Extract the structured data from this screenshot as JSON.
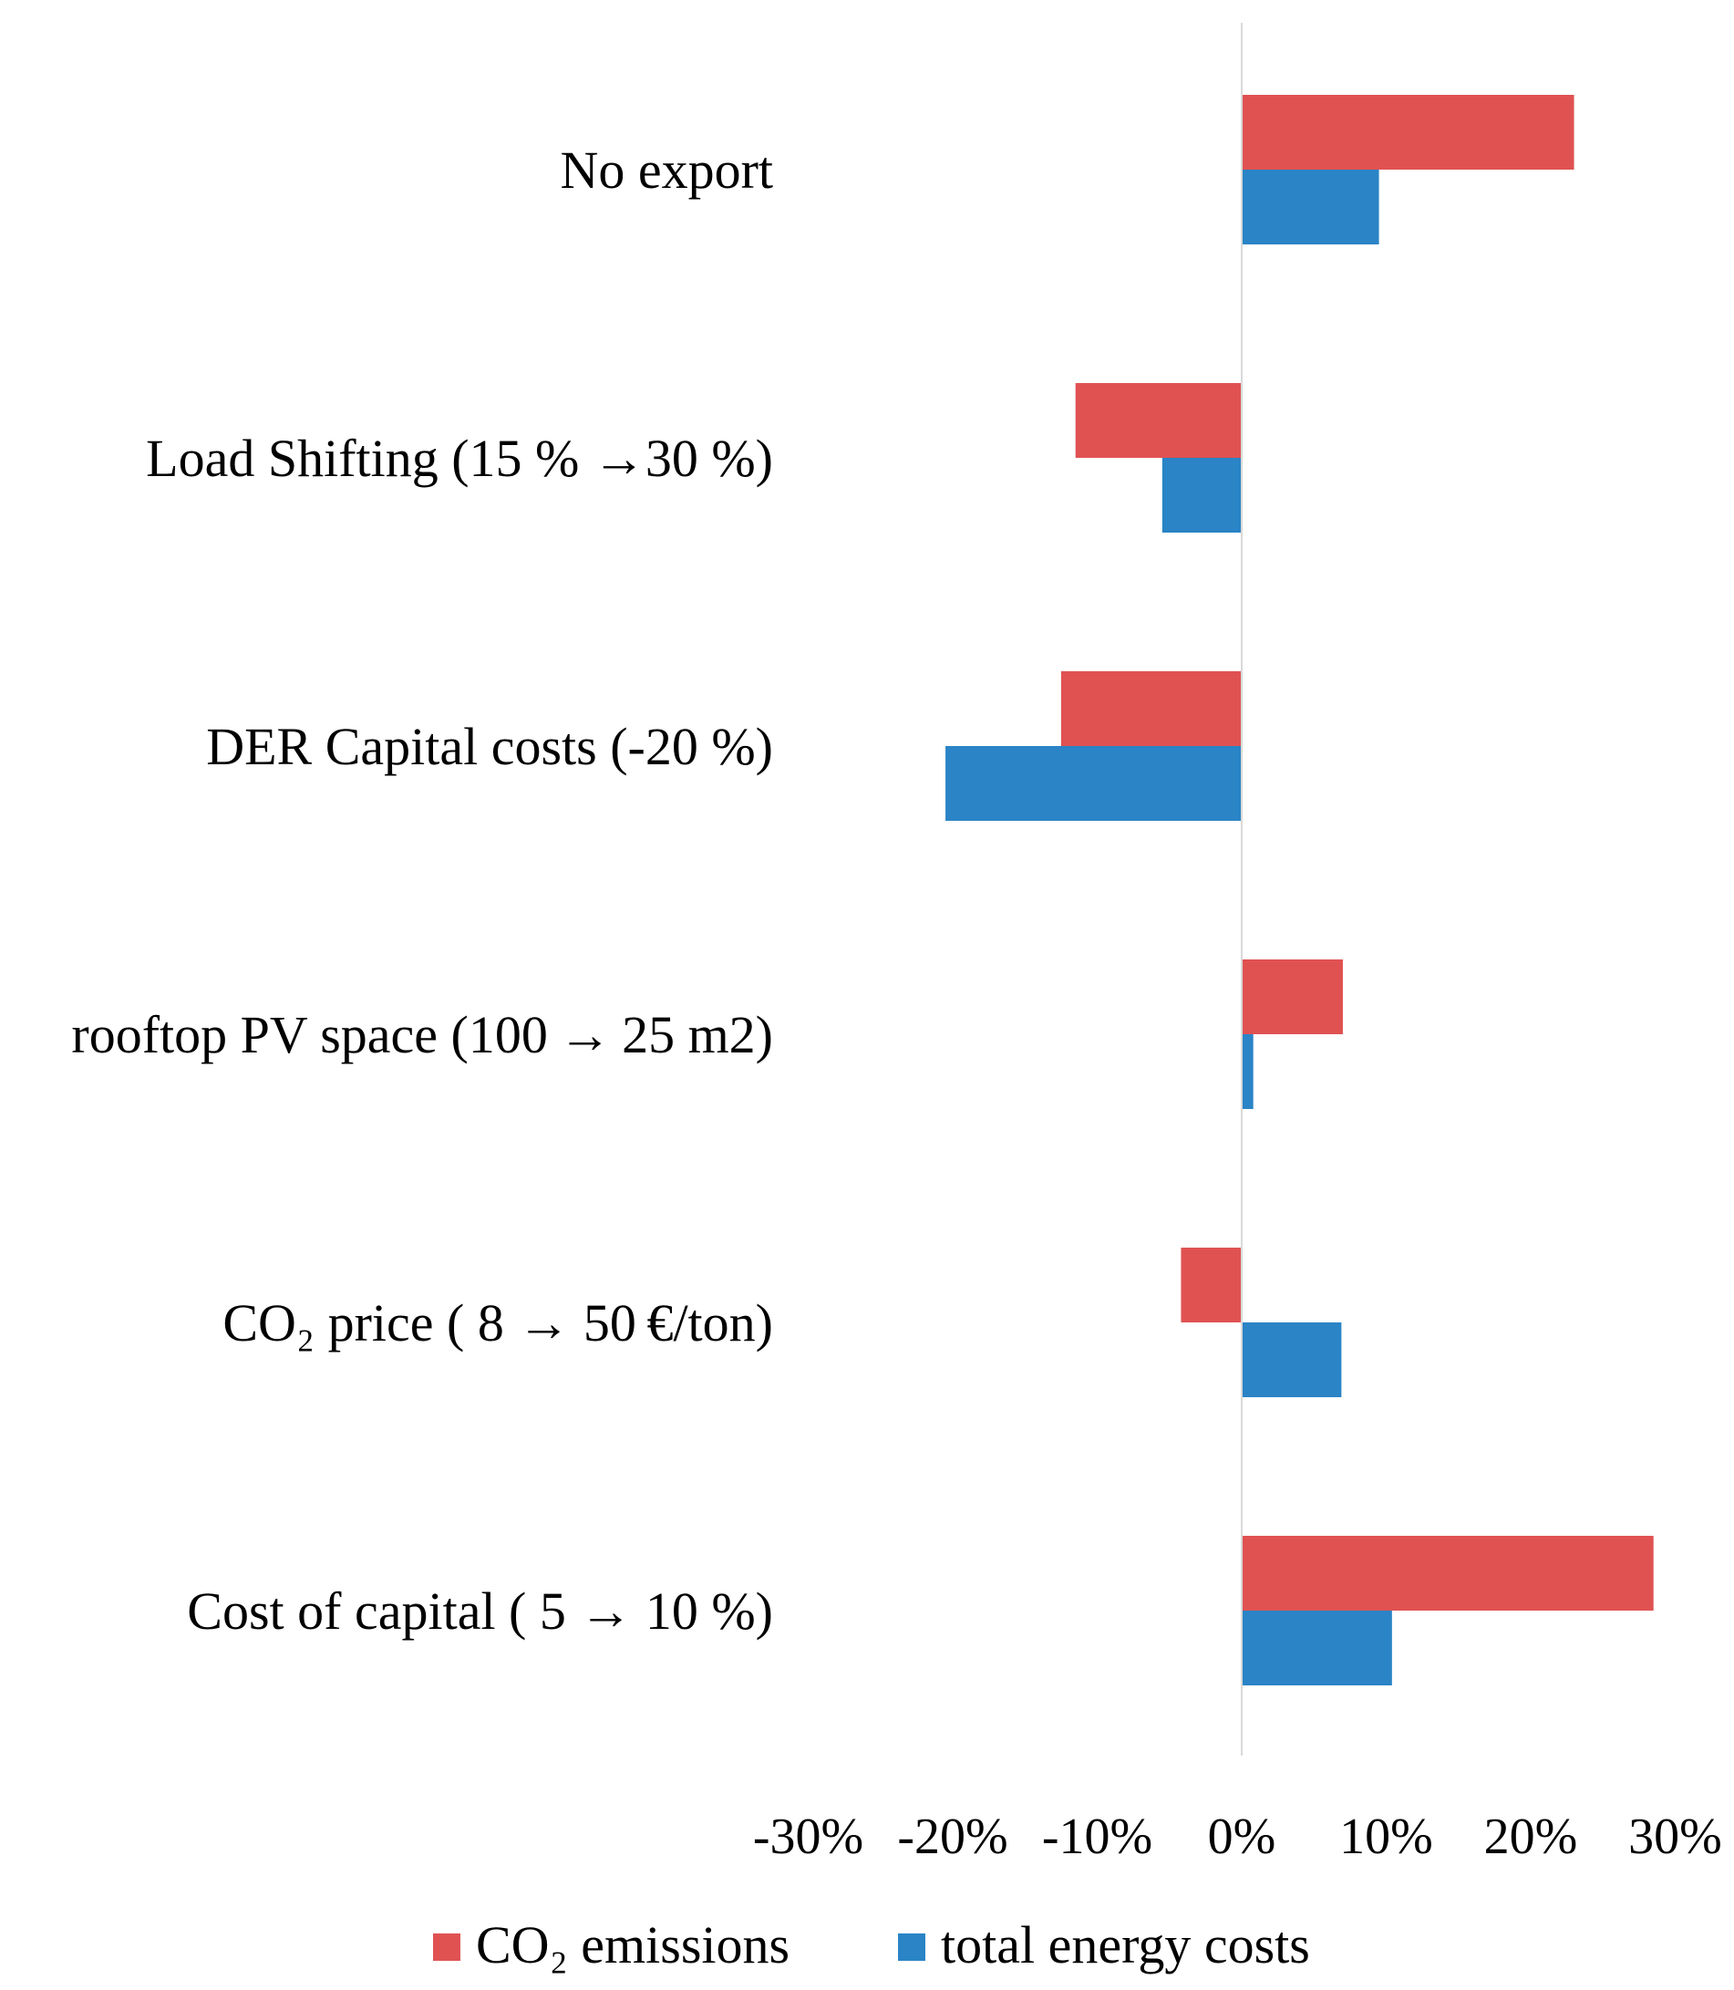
{
  "chart_data": {
    "type": "bar",
    "orientation": "horizontal",
    "title": "",
    "xlabel": "",
    "ylabel": "",
    "xlim": [
      -0.3,
      0.3
    ],
    "grid": false,
    "legend_position": "bottom",
    "categories": [
      "No export",
      "Load Shifting (15 % →30 %)",
      "DER Capital costs (-20 %)",
      "rooftop PV space (100 → 25 m2)",
      "CO₂ price ( 8 → 50 €/ton)",
      "Cost of capital ( 5 → 10 %)"
    ],
    "series": [
      {
        "name": "CO₂ emissions",
        "color": "#e05252",
        "values": [
          0.23,
          -0.115,
          -0.125,
          0.07,
          -0.042,
          0.285
        ]
      },
      {
        "name": "total energy costs",
        "color": "#2a84c6",
        "values": [
          0.095,
          -0.055,
          -0.205,
          0.008,
          0.069,
          0.104
        ]
      }
    ],
    "ticks": [
      "-30%",
      "-20%",
      "-10%",
      "0%",
      "10%",
      "20%",
      "30%"
    ],
    "tick_values": [
      -0.3,
      -0.2,
      -0.1,
      0.0,
      0.1,
      0.2,
      0.3
    ]
  },
  "colors": {
    "axis_line": "#d9d9d9"
  }
}
